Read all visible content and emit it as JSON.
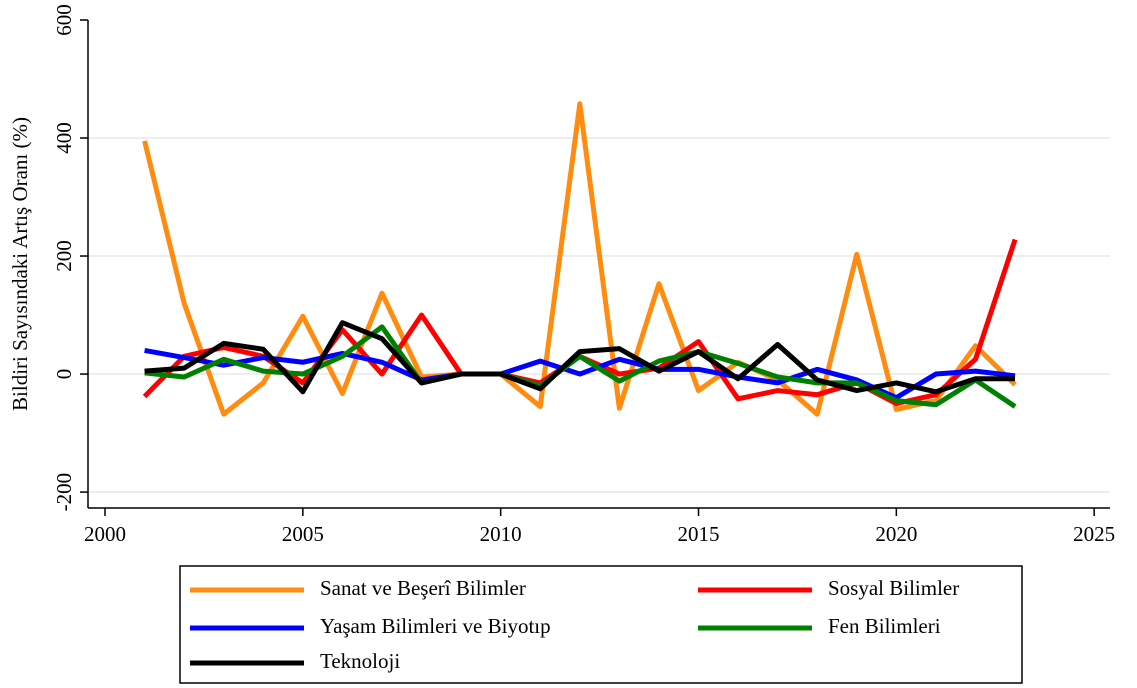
{
  "chart_data": {
    "type": "line",
    "y_label": "Bildiri Sayısındaki Artış Oranı (%)",
    "x": [
      2001,
      2002,
      2003,
      2004,
      2005,
      2006,
      2007,
      2008,
      2009,
      2010,
      2011,
      2012,
      2013,
      2014,
      2015,
      2016,
      2017,
      2018,
      2019,
      2020,
      2021,
      2022,
      2023
    ],
    "series": [
      {
        "name": "Sanat ve Beşerî Bilimler",
        "color": "#ff8c0f",
        "values": [
          395,
          120,
          -68,
          -15,
          98,
          -33,
          137,
          -5,
          0,
          0,
          -55,
          458,
          -58,
          153,
          -28,
          20,
          -10,
          -68,
          203,
          -60,
          -45,
          48,
          -18
        ]
      },
      {
        "name": "Sosyal Bilimler",
        "color": "#ff0000",
        "values": [
          -38,
          30,
          45,
          30,
          -15,
          75,
          0,
          100,
          0,
          0,
          -15,
          30,
          0,
          10,
          55,
          -42,
          -28,
          -35,
          -15,
          -50,
          -35,
          25,
          228
        ]
      },
      {
        "name": "Yaşam Bilimleri ve Biyotıp",
        "color": "#0000ff",
        "values": [
          40,
          28,
          15,
          28,
          20,
          35,
          20,
          -10,
          0,
          0,
          22,
          0,
          25,
          8,
          8,
          -5,
          -15,
          8,
          -10,
          -40,
          0,
          5,
          -3
        ]
      },
      {
        "name": "Fen Bilimleri",
        "color": "#008000",
        "values": [
          2,
          -5,
          25,
          5,
          0,
          30,
          80,
          -15,
          0,
          0,
          -20,
          30,
          -12,
          22,
          38,
          18,
          -5,
          -15,
          -15,
          -45,
          -52,
          -10,
          -55
        ]
      },
      {
        "name": "Teknoloji",
        "color": "#000000",
        "values": [
          5,
          10,
          52,
          42,
          -30,
          87,
          60,
          -15,
          0,
          0,
          -25,
          38,
          43,
          5,
          38,
          -8,
          50,
          -10,
          -28,
          -15,
          -30,
          -8,
          -8
        ]
      }
    ],
    "xlim": [
      1999.57,
      2025.4
    ],
    "xticks": [
      2000,
      2005,
      2010,
      2015,
      2020,
      2025
    ],
    "ylim": [
      -227,
      600
    ],
    "yticks": [
      -200,
      0,
      200,
      400,
      600
    ],
    "grid": true,
    "legend": "bottom"
  }
}
